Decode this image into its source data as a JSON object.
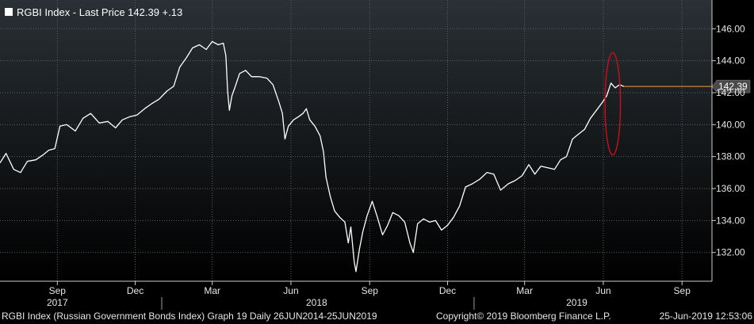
{
  "chart_data": {
    "type": "line",
    "legend_placement": "top-left",
    "grid": true,
    "ylim": [
      130.2,
      147.8
    ],
    "xlim": [
      "2017-06-26",
      "2019-10-06"
    ],
    "y_ticks": [
      132,
      134,
      136,
      138,
      140,
      142,
      144,
      146
    ],
    "y_tick_labels": [
      "132.00",
      "134.00",
      "136.00",
      "138.00",
      "140.00",
      "142.00",
      "144.00",
      "146.00"
    ],
    "x_ticks": [
      {
        "date": "2017-09-01",
        "label": "Sep"
      },
      {
        "date": "2017-12-01",
        "label": "Dec"
      },
      {
        "date": "2018-03-01",
        "label": "Mar"
      },
      {
        "date": "2018-06-01",
        "label": "Jun"
      },
      {
        "date": "2018-09-01",
        "label": "Sep"
      },
      {
        "date": "2018-12-01",
        "label": "Dec"
      },
      {
        "date": "2019-03-01",
        "label": "Mar"
      },
      {
        "date": "2019-06-01",
        "label": "Jun"
      },
      {
        "date": "2019-09-01",
        "label": "Sep"
      }
    ],
    "year_labels": [
      {
        "date": "2017-09-01",
        "label": "2017"
      },
      {
        "date": "2018-07-01",
        "label": "2018"
      },
      {
        "date": "2019-05-01",
        "label": "2019"
      }
    ],
    "year_dividers": [
      "2018-01-01",
      "2019-01-01"
    ],
    "series": [
      {
        "name": "RGBI Index - Last Price 142.39  +.13",
        "color": "#ffffff",
        "points": [
          [
            "2017-06-26",
            137.6
          ],
          [
            "2017-07-03",
            138.2
          ],
          [
            "2017-07-12",
            137.2
          ],
          [
            "2017-07-20",
            137.0
          ],
          [
            "2017-07-28",
            137.7
          ],
          [
            "2017-08-07",
            137.8
          ],
          [
            "2017-08-15",
            138.1
          ],
          [
            "2017-08-22",
            138.4
          ],
          [
            "2017-08-29",
            138.5
          ],
          [
            "2017-09-04",
            139.9
          ],
          [
            "2017-09-12",
            140.0
          ],
          [
            "2017-09-22",
            139.6
          ],
          [
            "2017-10-01",
            140.4
          ],
          [
            "2017-10-10",
            140.7
          ],
          [
            "2017-10-20",
            140.1
          ],
          [
            "2017-10-30",
            140.2
          ],
          [
            "2017-11-08",
            139.8
          ],
          [
            "2017-11-16",
            140.3
          ],
          [
            "2017-11-25",
            140.5
          ],
          [
            "2017-12-03",
            140.6
          ],
          [
            "2017-12-12",
            141.0
          ],
          [
            "2017-12-20",
            141.3
          ],
          [
            "2017-12-29",
            141.6
          ],
          [
            "2018-01-07",
            142.1
          ],
          [
            "2018-01-15",
            142.4
          ],
          [
            "2018-01-22",
            143.6
          ],
          [
            "2018-01-30",
            144.2
          ],
          [
            "2018-02-06",
            144.8
          ],
          [
            "2018-02-14",
            145.0
          ],
          [
            "2018-02-22",
            144.7
          ],
          [
            "2018-03-01",
            145.2
          ],
          [
            "2018-03-08",
            145.0
          ],
          [
            "2018-03-14",
            145.1
          ],
          [
            "2018-03-17",
            144.3
          ],
          [
            "2018-03-19",
            142.1
          ],
          [
            "2018-03-21",
            140.9
          ],
          [
            "2018-03-24",
            141.8
          ],
          [
            "2018-03-28",
            142.4
          ],
          [
            "2018-04-02",
            143.2
          ],
          [
            "2018-04-09",
            143.4
          ],
          [
            "2018-04-16",
            143.0
          ],
          [
            "2018-04-25",
            143.0
          ],
          [
            "2018-05-04",
            142.9
          ],
          [
            "2018-05-11",
            142.5
          ],
          [
            "2018-05-18",
            141.4
          ],
          [
            "2018-05-22",
            140.7
          ],
          [
            "2018-05-25",
            139.1
          ],
          [
            "2018-05-29",
            139.9
          ],
          [
            "2018-06-04",
            140.3
          ],
          [
            "2018-06-10",
            140.5
          ],
          [
            "2018-06-15",
            140.7
          ],
          [
            "2018-06-19",
            141.0
          ],
          [
            "2018-06-23",
            140.3
          ],
          [
            "2018-06-29",
            139.9
          ],
          [
            "2018-07-05",
            139.3
          ],
          [
            "2018-07-09",
            138.3
          ],
          [
            "2018-07-12",
            136.7
          ],
          [
            "2018-07-17",
            135.5
          ],
          [
            "2018-07-22",
            134.6
          ],
          [
            "2018-07-28",
            134.2
          ],
          [
            "2018-08-03",
            133.9
          ],
          [
            "2018-08-07",
            132.6
          ],
          [
            "2018-08-10",
            133.6
          ],
          [
            "2018-08-14",
            131.4
          ],
          [
            "2018-08-16",
            130.8
          ],
          [
            "2018-08-20",
            132.2
          ],
          [
            "2018-08-24",
            133.3
          ],
          [
            "2018-08-29",
            134.3
          ],
          [
            "2018-09-04",
            135.2
          ],
          [
            "2018-09-10",
            134.2
          ],
          [
            "2018-09-16",
            133.1
          ],
          [
            "2018-09-22",
            133.7
          ],
          [
            "2018-09-28",
            134.5
          ],
          [
            "2018-10-05",
            134.3
          ],
          [
            "2018-10-12",
            133.9
          ],
          [
            "2018-10-18",
            132.6
          ],
          [
            "2018-10-22",
            132.0
          ],
          [
            "2018-10-27",
            133.8
          ],
          [
            "2018-11-03",
            134.1
          ],
          [
            "2018-11-10",
            133.9
          ],
          [
            "2018-11-17",
            134.0
          ],
          [
            "2018-11-24",
            133.4
          ],
          [
            "2018-12-01",
            133.7
          ],
          [
            "2018-12-08",
            134.2
          ],
          [
            "2018-12-15",
            134.9
          ],
          [
            "2018-12-22",
            136.1
          ],
          [
            "2018-12-30",
            136.3
          ],
          [
            "2019-01-08",
            136.6
          ],
          [
            "2019-01-16",
            137.0
          ],
          [
            "2019-01-24",
            136.9
          ],
          [
            "2019-02-01",
            135.9
          ],
          [
            "2019-02-10",
            136.3
          ],
          [
            "2019-02-18",
            136.5
          ],
          [
            "2019-02-26",
            136.8
          ],
          [
            "2019-03-06",
            137.5
          ],
          [
            "2019-03-13",
            136.9
          ],
          [
            "2019-03-20",
            137.4
          ],
          [
            "2019-03-28",
            137.3
          ],
          [
            "2019-04-05",
            137.2
          ],
          [
            "2019-04-12",
            137.8
          ],
          [
            "2019-04-19",
            138.0
          ],
          [
            "2019-04-26",
            139.1
          ],
          [
            "2019-05-03",
            139.4
          ],
          [
            "2019-05-10",
            139.7
          ],
          [
            "2019-05-17",
            140.4
          ],
          [
            "2019-05-24",
            140.9
          ],
          [
            "2019-05-31",
            141.4
          ],
          [
            "2019-06-05",
            141.8
          ],
          [
            "2019-06-10",
            142.6
          ],
          [
            "2019-06-15",
            142.3
          ],
          [
            "2019-06-20",
            142.5
          ],
          [
            "2019-06-25",
            142.39
          ]
        ]
      }
    ],
    "last_price": {
      "value": 142.39,
      "label": "142.39",
      "line_color": "#e8a33a",
      "tag_color": "#4a4a4a"
    },
    "highlight_ellipse": {
      "center": [
        "2019-06-12",
        141.3
      ],
      "rx_days": 9,
      "ry": 3.2,
      "color": "#c0101a"
    }
  },
  "legend": {
    "text": "RGBI Index - Last Price 142.39  +.13"
  },
  "footer": {
    "left": "RGBI Index (Russian Government Bonds Index) Graph 19  Daily 26JUN2014-25JUN2019",
    "center": "Copyright© 2019 Bloomberg Finance L.P.",
    "right": "25-Jun-2019 12:53:06"
  },
  "colors": {
    "background_top": "#2a3035",
    "background_bottom": "#000000",
    "grid": "#5a5f66",
    "axis_text": "#e6e6e6"
  }
}
